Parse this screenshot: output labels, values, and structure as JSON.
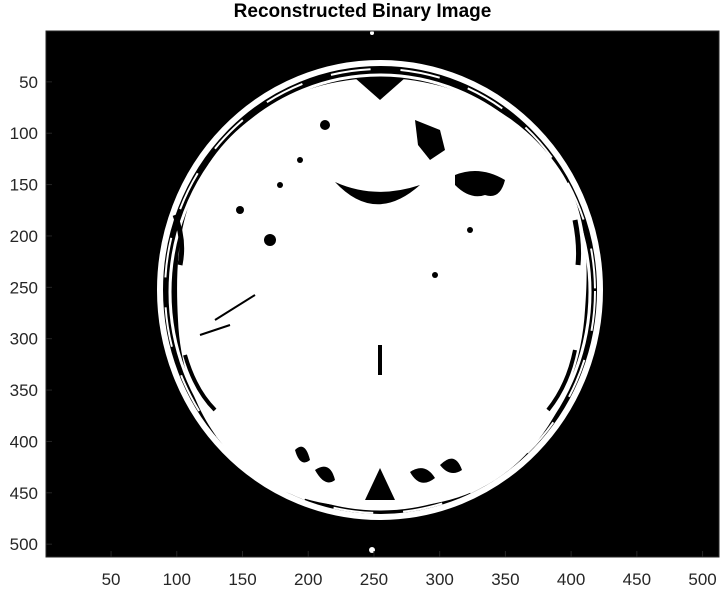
{
  "figure": {
    "title": "Reconstructed Binary Image"
  },
  "image": {
    "kind": "binary brain MRI slice (axial)",
    "background_color": "#000000",
    "foreground_color": "#ffffff"
  },
  "axes": {
    "xlim": [
      0.5,
      512.5
    ],
    "ylim": [
      0.5,
      512.5
    ],
    "y_direction": "reverse",
    "box": true,
    "x_ticks": [
      50,
      100,
      150,
      200,
      250,
      300,
      350,
      400,
      450,
      500
    ],
    "y_ticks": [
      50,
      100,
      150,
      200,
      250,
      300,
      350,
      400,
      450,
      500
    ]
  }
}
